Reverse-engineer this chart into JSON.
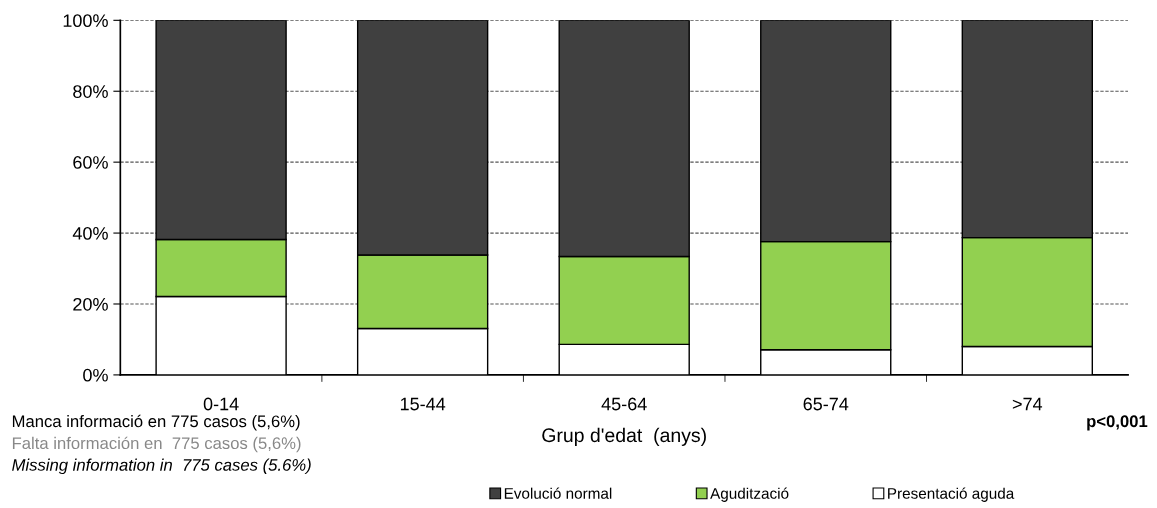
{
  "chart_data": {
    "type": "bar",
    "stacked": true,
    "xlabel": "Grup d'edat  (anys)",
    "categories": [
      "0-14",
      "15-44",
      "45-64",
      "65-74",
      ">74"
    ],
    "series": [
      {
        "name": "Presentació aguda",
        "color": "#ffffff",
        "values": [
          22.1,
          13.1,
          8.6,
          7.1,
          8.0
        ]
      },
      {
        "name": "Agudització",
        "color": "#92d050",
        "values": [
          16.1,
          20.7,
          24.8,
          30.5,
          30.7
        ]
      },
      {
        "name": "Evolució normal",
        "color": "#404040",
        "values": [
          61.8,
          66.2,
          66.6,
          62.4,
          61.3
        ]
      }
    ],
    "ylim": [
      0,
      100
    ],
    "yticks": [
      {
        "value": 0,
        "label": "0%"
      },
      {
        "value": 20,
        "label": "20%"
      },
      {
        "value": 40,
        "label": "40%"
      },
      {
        "value": 60,
        "label": "60%"
      },
      {
        "value": 80,
        "label": "80%"
      },
      {
        "value": 100,
        "label": "100%"
      }
    ],
    "grid": "y",
    "line_style": "dashed",
    "legend": "bottom",
    "annotations": [
      "Manca informació en 775 casos (5,6%)",
      "Falta información en  775 casos (5,6%)",
      "Missing information in  775 cases (5.6%)",
      "p<0,001"
    ]
  }
}
